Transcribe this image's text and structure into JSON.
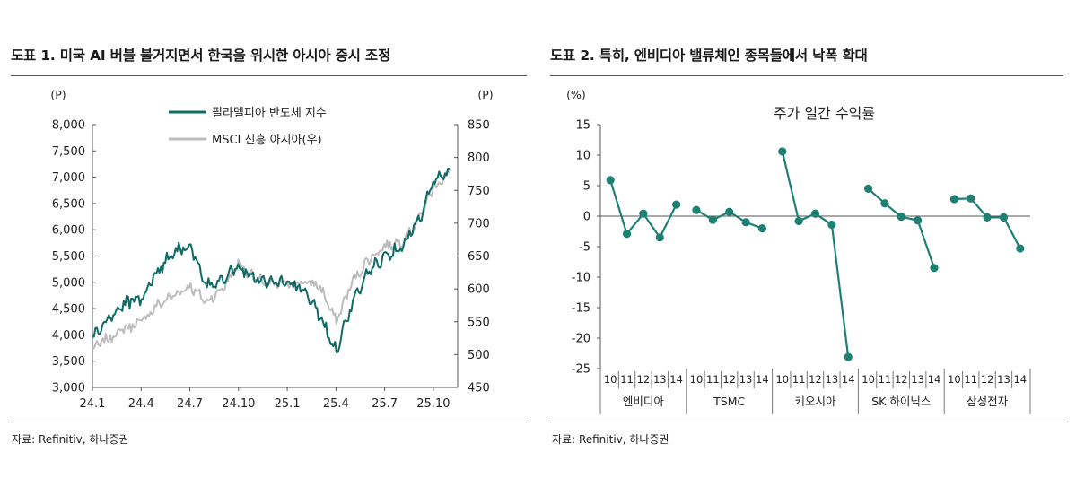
{
  "panels": [
    {
      "title": "도표 1. 미국 AI 버블 불거지면서 한국을 위시한 아시아 증시 조정",
      "source": "자료: Refinitiv, 하나증권"
    },
    {
      "title": "도표 2. 특히, 엔비디아 밸류체인 종목들에서 낙폭 확대",
      "source": "자료: Refinitiv, 하나증권"
    }
  ],
  "chart_data": [
    {
      "type": "line",
      "title": "",
      "x_ticks": [
        "24.1",
        "24.4",
        "24.7",
        "24.10",
        "25.1",
        "25.4",
        "25.7",
        "25.10"
      ],
      "y_left": {
        "unit": "(P)",
        "ticks": [
          "8,000",
          "7,500",
          "7,000",
          "6,500",
          "6,000",
          "5,500",
          "5,000",
          "4,500",
          "4,000",
          "3,500",
          "3,000"
        ],
        "range": [
          3000,
          8000
        ]
      },
      "y_right": {
        "unit": "(P)",
        "ticks": [
          "850",
          "800",
          "750",
          "700",
          "650",
          "600",
          "550",
          "500",
          "450"
        ],
        "range": [
          450,
          850
        ]
      },
      "legend_position": "top-center",
      "series": [
        {
          "name": "필라델피아 반도체 지수",
          "axis": "left",
          "color": "#0e6b66",
          "points": [
            [
              "24.1",
              3950
            ],
            [
              "24.2",
              4300
            ],
            [
              "24.3",
              4600
            ],
            [
              "24.4",
              4700
            ],
            [
              "24.5",
              5200
            ],
            [
              "24.6",
              5600
            ],
            [
              "24.7",
              5700
            ],
            [
              "24.8",
              4900
            ],
            [
              "24.9",
              5100
            ],
            [
              "24.10",
              5300
            ],
            [
              "24.11",
              5100
            ],
            [
              "24.12",
              5000
            ],
            [
              "25.1",
              5000
            ],
            [
              "25.2",
              4850
            ],
            [
              "25.3",
              4400
            ],
            [
              "25.4",
              3700
            ],
            [
              "25.5",
              4600
            ],
            [
              "25.6",
              5200
            ],
            [
              "25.7",
              5500
            ],
            [
              "25.8",
              5700
            ],
            [
              "25.9",
              6100
            ],
            [
              "25.10",
              6900
            ],
            [
              "25.11",
              7100
            ]
          ]
        },
        {
          "name": "MSCI 신흥 아시아(우)",
          "axis": "right",
          "color": "#bdbdbd",
          "points": [
            [
              "24.1",
              508
            ],
            [
              "24.2",
              525
            ],
            [
              "24.3",
              540
            ],
            [
              "24.4",
              550
            ],
            [
              "24.5",
              575
            ],
            [
              "24.6",
              590
            ],
            [
              "24.7",
              605
            ],
            [
              "24.8",
              580
            ],
            [
              "24.9",
              600
            ],
            [
              "24.10",
              640
            ],
            [
              "24.11",
              615
            ],
            [
              "24.12",
              605
            ],
            [
              "25.1",
              608
            ],
            [
              "25.2",
              610
            ],
            [
              "25.3",
              605
            ],
            [
              "25.4",
              550
            ],
            [
              "25.5",
              610
            ],
            [
              "25.6",
              645
            ],
            [
              "25.7",
              665
            ],
            [
              "25.8",
              672
            ],
            [
              "25.9",
              700
            ],
            [
              "25.10",
              755
            ],
            [
              "25.11",
              775
            ]
          ]
        }
      ]
    },
    {
      "type": "scatter",
      "title": "주가 일간 수익률",
      "y_unit": "(%)",
      "y_range": [
        -25,
        15
      ],
      "y_ticks": [
        "15",
        "10",
        "5",
        "0",
        "-5",
        "-10",
        "-15",
        "-20",
        "-25"
      ],
      "series_color": "#1e7f73",
      "days": [
        "10",
        "11",
        "12",
        "13",
        "14"
      ],
      "groups": [
        {
          "name": "엔비디아",
          "values": [
            5.9,
            -2.9,
            0.4,
            -3.5,
            1.9
          ]
        },
        {
          "name": "TSMC",
          "values": [
            1.0,
            -0.6,
            0.7,
            -1.0,
            -2.0
          ]
        },
        {
          "name": "키오시아",
          "values": [
            10.6,
            -0.8,
            0.4,
            -1.4,
            -23.1
          ]
        },
        {
          "name": "SK 하이닉스",
          "values": [
            4.5,
            2.1,
            -0.1,
            -0.7,
            -8.5
          ]
        },
        {
          "name": "삼성전자",
          "values": [
            2.8,
            2.9,
            -0.2,
            -0.2,
            -5.3
          ]
        }
      ]
    }
  ]
}
